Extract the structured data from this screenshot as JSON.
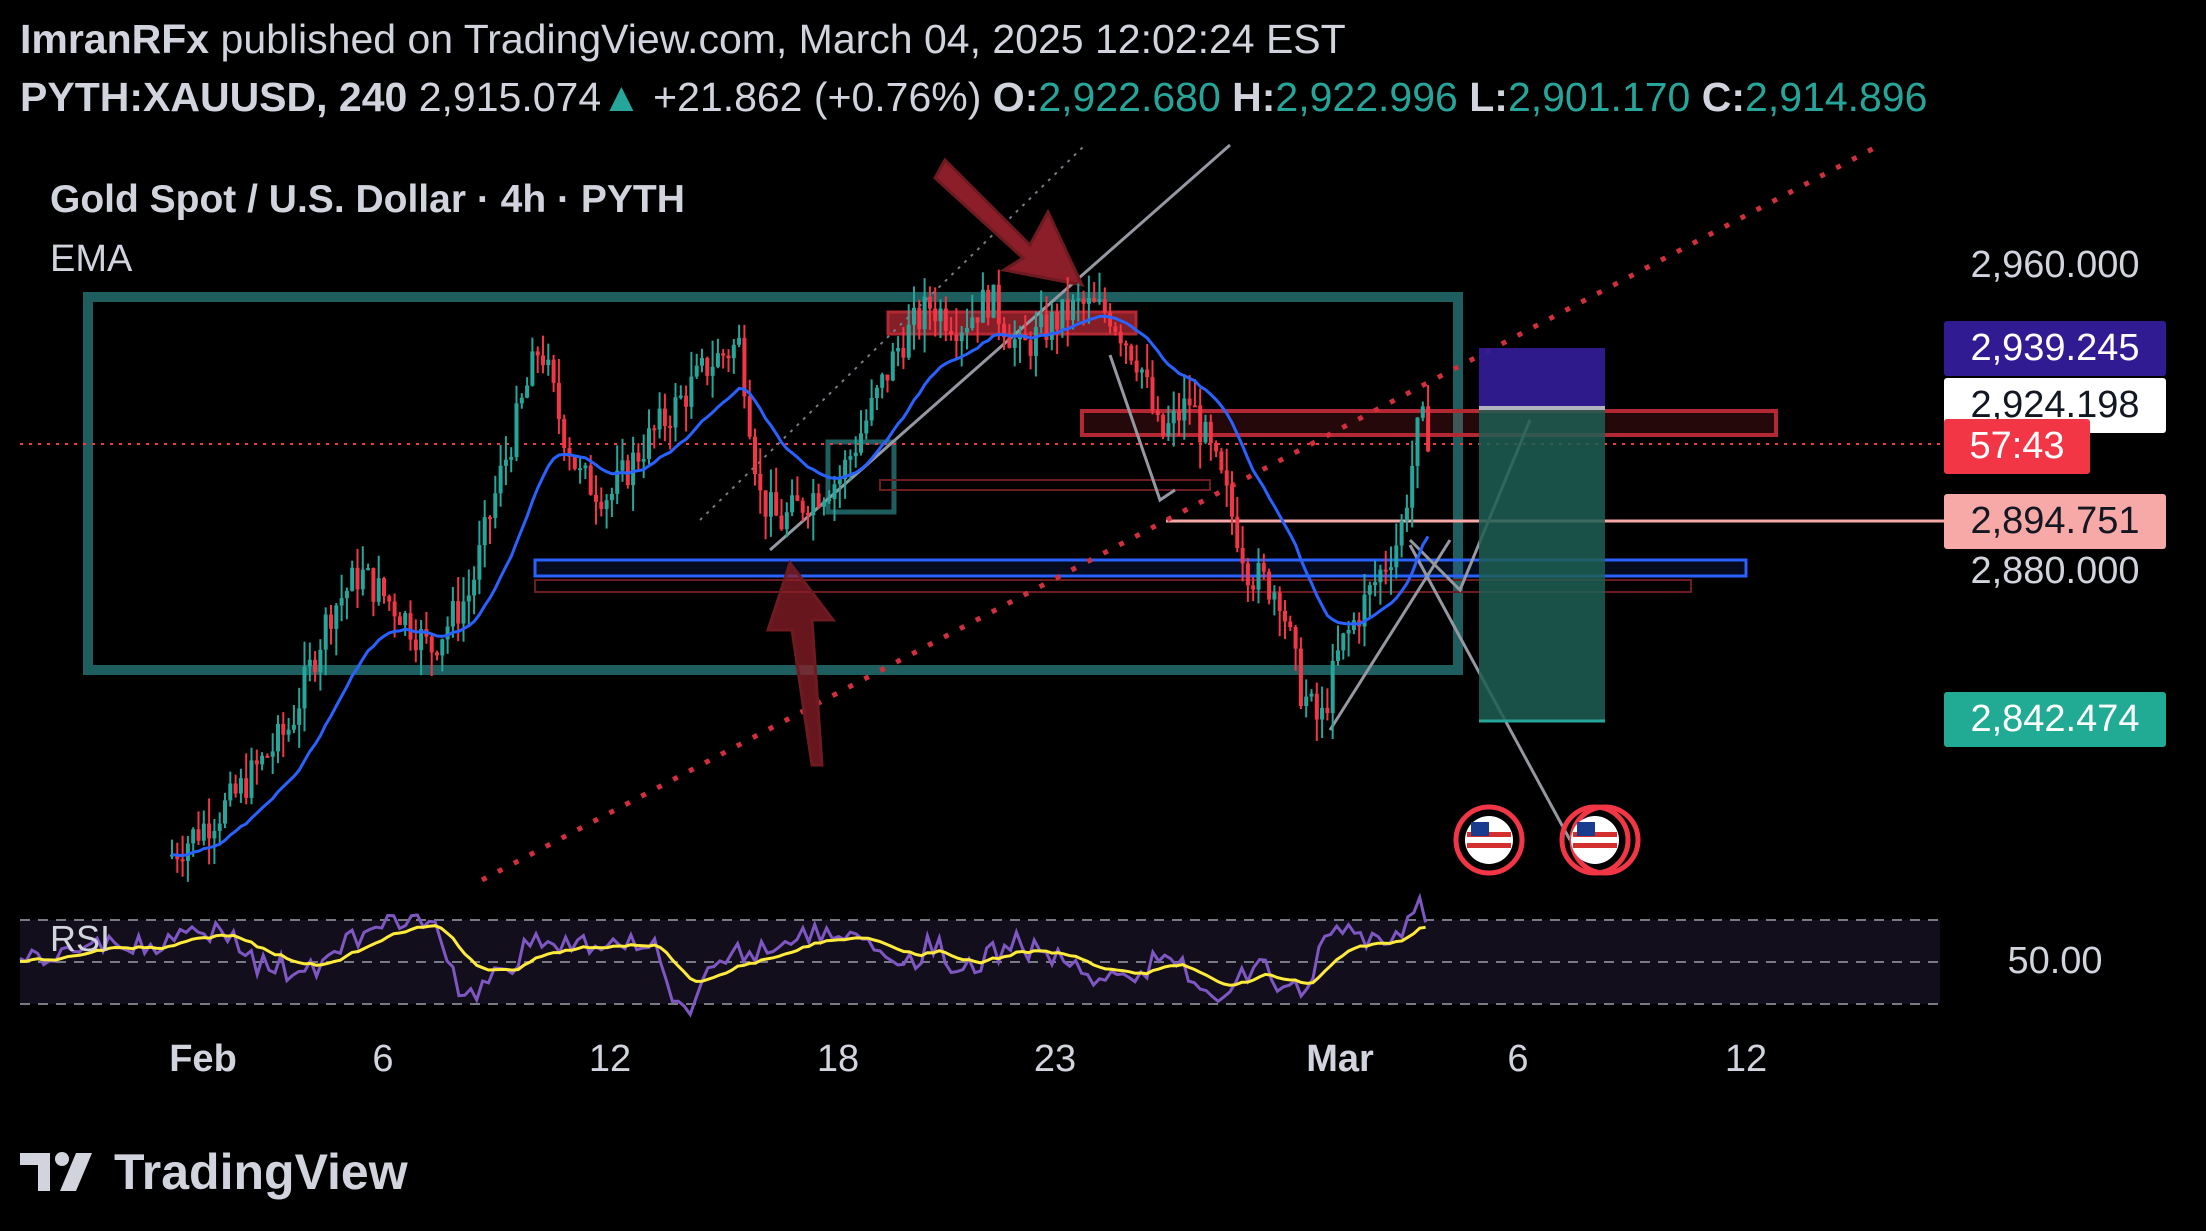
{
  "header": {
    "author": "ImranRFx",
    "published_text": "published on TradingView.com, March 04, 2025 12:02:24 EST",
    "symbol": "PYTH:XAUUSD, 240",
    "last_price": "2,915.074",
    "change": "+21.862 (+0.76%)",
    "open_label": "O:",
    "open": "2,922.680",
    "high_label": "H:",
    "high": "2,922.996",
    "low_label": "L:",
    "low": "2,901.170",
    "close_label": "C:",
    "close": "2,914.896"
  },
  "legend": {
    "title": "Gold Spot / U.S. Dollar · 4h · PYTH",
    "indicator": "EMA",
    "rsi_label": "RSI"
  },
  "price_axis": {
    "ticks": [
      "2,960.000",
      "2,880.000"
    ],
    "rsi_tick": "50.00"
  },
  "price_tags": [
    {
      "text": "2,939.245",
      "bg": "#311b92",
      "fg": "#ffffff"
    },
    {
      "text": "2,924.198",
      "bg": "#ffffff",
      "fg": "#131722"
    },
    {
      "text": "57:43",
      "bg": "#f23645",
      "fg": "#ffffff"
    },
    {
      "text": "2,894.751",
      "bg": "#f7a9a8",
      "fg": "#131722"
    },
    {
      "text": "2,842.474",
      "bg": "#22ab94",
      "fg": "#ffffff"
    }
  ],
  "time_axis": [
    "Feb",
    "6",
    "12",
    "18",
    "23",
    "Mar",
    "6",
    "12"
  ],
  "footer": {
    "brand": "TradingView"
  },
  "colors": {
    "up": "#26a69a",
    "down": "#f23645",
    "ema": "#2962ff",
    "rsi": "#7e57c2",
    "rsi_ma": "#ffeb3b",
    "box": "#1a5c5c"
  },
  "chart_data": {
    "type": "candlestick",
    "title": "Gold Spot / U.S. Dollar · 4h · PYTH",
    "x_ticks": [
      "Feb",
      "6",
      "12",
      "18",
      "23",
      "Mar",
      "6",
      "12"
    ],
    "y_ticks": [
      2960,
      2880
    ],
    "ylim": [
      2800,
      2972
    ],
    "annotations": {
      "position_entry": 2915,
      "target": 2939.245,
      "stop_zone": 2842.474,
      "horizontal_level": 2894.751
    }
  }
}
